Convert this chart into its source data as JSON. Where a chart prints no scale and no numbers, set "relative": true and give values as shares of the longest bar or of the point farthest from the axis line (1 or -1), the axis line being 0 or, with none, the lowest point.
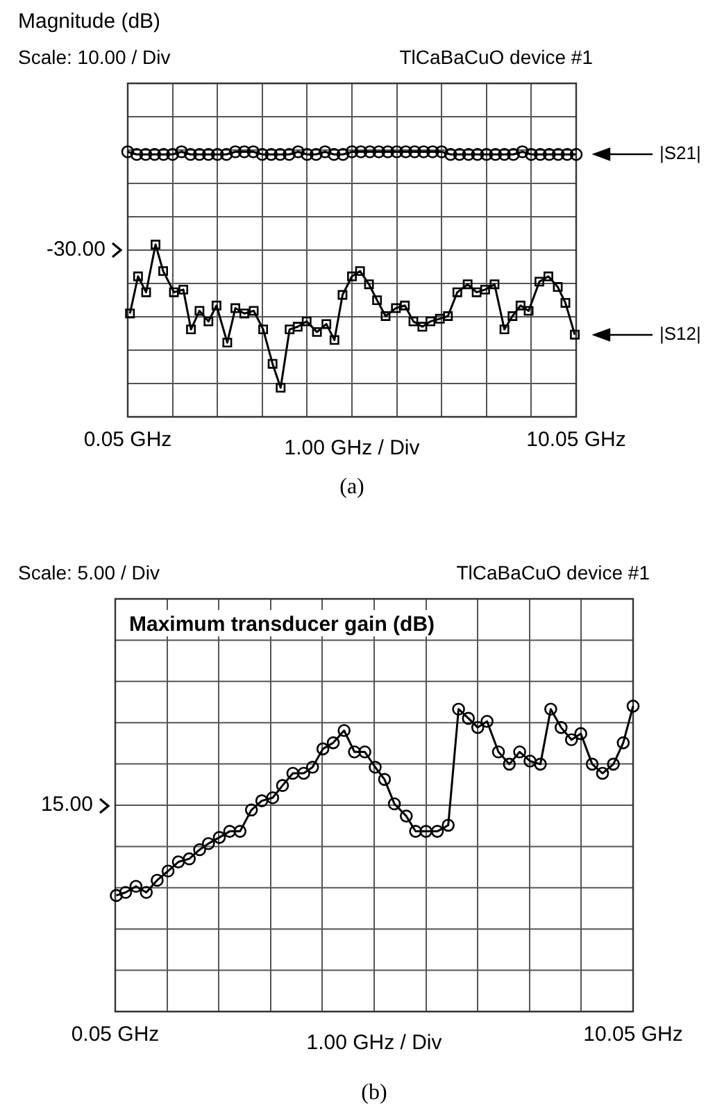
{
  "chart_data": [
    {
      "type": "line",
      "relative": true,
      "title": "TlCaBaCuO device #1",
      "subtitle": "Scale: 10.00 / Div",
      "ylabel": "Magnitude (dB)",
      "xlabel": "1.00 GHz / Div",
      "annotations": [
        "(a)",
        "-30.00"
      ],
      "legend": "right",
      "xlim": [
        0.05,
        10.05
      ],
      "xticks": [
        {
          "value": 0.05,
          "label": "0.05 GHz"
        },
        {
          "value": 1.05,
          "label": null
        },
        {
          "value": 2.05,
          "label": null
        },
        {
          "value": 3.05,
          "label": null
        },
        {
          "value": 4.05,
          "label": null
        },
        {
          "value": 5.05,
          "label": null
        },
        {
          "value": 6.05,
          "label": null
        },
        {
          "value": 7.05,
          "label": null
        },
        {
          "value": 8.05,
          "label": null
        },
        {
          "value": 9.05,
          "label": null
        },
        {
          "value": 10.05,
          "label": "10.05 GHz"
        }
      ],
      "grid": true,
      "series": [
        {
          "name": "|S21|",
          "color": "#000000",
          "marker": "circle",
          "x": [
            0.05,
            0.25,
            0.45,
            0.65,
            0.85,
            1.05,
            1.25,
            1.45,
            1.65,
            1.85,
            2.05,
            2.25,
            2.45,
            2.65,
            2.85,
            3.05,
            3.25,
            3.45,
            3.65,
            3.85,
            4.05,
            4.25,
            4.45,
            4.65,
            4.85,
            5.05,
            5.25,
            5.45,
            5.65,
            5.85,
            6.05,
            6.25,
            6.45,
            6.65,
            6.85,
            7.05,
            7.25,
            7.45,
            7.65,
            7.85,
            8.05,
            8.25,
            8.45,
            8.65,
            8.85,
            9.05,
            9.25,
            9.45,
            9.65,
            9.85,
            10.05
          ],
          "values": [
            1,
            0.99,
            0.99,
            0.99,
            0.99,
            0.99,
            1,
            0.99,
            0.99,
            0.99,
            0.99,
            0.99,
            1,
            1,
            1,
            0.99,
            0.99,
            0.99,
            0.99,
            1,
            0.99,
            0.99,
            1,
            0.99,
            0.99,
            1,
            1,
            1,
            1,
            1,
            1,
            1,
            1,
            1,
            1,
            1,
            0.99,
            0.99,
            0.99,
            0.99,
            0.99,
            0.99,
            0.99,
            0.99,
            1,
            0.99,
            0.99,
            0.99,
            0.99,
            0.99,
            0.99
          ]
        },
        {
          "name": "|S12|",
          "color": "#000000",
          "marker": "square",
          "x": [
            0.1,
            0.28,
            0.46,
            0.67,
            0.84,
            1.08,
            1.29,
            1.46,
            1.65,
            1.85,
            2.03,
            2.27,
            2.45,
            2.65,
            2.86,
            3.07,
            3.28,
            3.46,
            3.66,
            3.84,
            4.04,
            4.27,
            4.48,
            4.66,
            4.84,
            5.05,
            5.23,
            5.43,
            5.61,
            5.8,
            6.03,
            6.23,
            6.42,
            6.62,
            6.8,
            7.01,
            7.19,
            7.4,
            7.63,
            7.83,
            8.02,
            8.23,
            8.45,
            8.63,
            8.81,
            8.99,
            9.23,
            9.43,
            9.64,
            9.81,
            10.02
          ],
          "values": [
            0.39,
            0.53,
            0.47,
            0.65,
            0.55,
            0.47,
            0.48,
            0.33,
            0.4,
            0.36,
            0.42,
            0.28,
            0.41,
            0.39,
            0.4,
            0.33,
            0.2,
            0.11,
            0.33,
            0.34,
            0.36,
            0.32,
            0.35,
            0.29,
            0.46,
            0.53,
            0.55,
            0.5,
            0.44,
            0.38,
            0.41,
            0.42,
            0.36,
            0.34,
            0.36,
            0.37,
            0.38,
            0.47,
            0.5,
            0.47,
            0.48,
            0.5,
            0.33,
            0.38,
            0.42,
            0.4,
            0.51,
            0.53,
            0.49,
            0.43,
            0.31
          ]
        }
      ]
    },
    {
      "type": "line",
      "relative": true,
      "title": "TlCaBaCuO device #1",
      "subtitle": "Scale: 5.00 / Div",
      "ylabel": "Maximum transducer gain (dB)",
      "xlabel": "1.00 GHz / Div",
      "annotations": [
        "(b)",
        "15.00"
      ],
      "xlim": [
        0.05,
        10.05
      ],
      "xticks": [
        {
          "value": 0.05,
          "label": "0.05 GHz"
        },
        {
          "value": 1.05,
          "label": null
        },
        {
          "value": 2.05,
          "label": null
        },
        {
          "value": 3.05,
          "label": null
        },
        {
          "value": 4.05,
          "label": null
        },
        {
          "value": 5.05,
          "label": null
        },
        {
          "value": 6.05,
          "label": null
        },
        {
          "value": 7.05,
          "label": null
        },
        {
          "value": 8.05,
          "label": null
        },
        {
          "value": 9.05,
          "label": null
        },
        {
          "value": 10.05,
          "label": "10.05 GHz"
        }
      ],
      "grid": true,
      "series": [
        {
          "color": "#000000",
          "marker": "circle",
          "x": [
            0.07,
            0.25,
            0.45,
            0.65,
            0.86,
            1.07,
            1.27,
            1.48,
            1.68,
            1.85,
            2.06,
            2.26,
            2.46,
            2.68,
            2.88,
            3.09,
            3.28,
            3.48,
            3.69,
            3.86,
            4.06,
            4.26,
            4.47,
            4.67,
            4.87,
            5.07,
            5.25,
            5.44,
            5.67,
            5.85,
            6.05,
            6.27,
            6.48,
            6.68,
            6.87,
            7.05,
            7.23,
            7.45,
            7.66,
            7.86,
            8.06,
            8.26,
            8.46,
            8.66,
            8.86,
            9.04,
            9.26,
            9.46,
            9.67,
            9.86,
            10.05
          ],
          "values": [
            0.38,
            0.39,
            0.41,
            0.39,
            0.43,
            0.46,
            0.49,
            0.5,
            0.53,
            0.55,
            0.57,
            0.59,
            0.59,
            0.66,
            0.69,
            0.7,
            0.74,
            0.78,
            0.78,
            0.8,
            0.86,
            0.88,
            0.92,
            0.85,
            0.85,
            0.8,
            0.76,
            0.68,
            0.64,
            0.59,
            0.59,
            0.59,
            0.61,
            0.99,
            0.96,
            0.93,
            0.95,
            0.85,
            0.81,
            0.85,
            0.82,
            0.81,
            0.99,
            0.93,
            0.89,
            0.91,
            0.81,
            0.78,
            0.81,
            0.88,
            1
          ]
        }
      ]
    }
  ]
}
